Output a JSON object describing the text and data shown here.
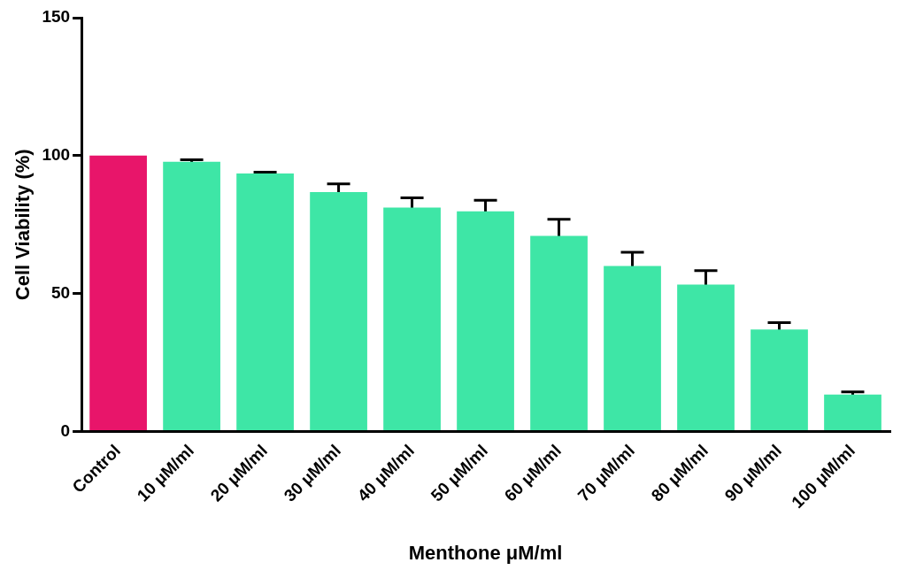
{
  "chart_data": {
    "type": "bar",
    "xlabel": "Menthone μM/ml",
    "ylabel": "Cell Viability (%)",
    "categories": [
      "Control",
      "10 μM/ml",
      "20 μM/ml",
      "30 μM/ml",
      "40 μM/ml",
      "50 μM/ml",
      "60 μM/ml",
      "70 μM/ml",
      "80 μM/ml",
      "90 μM/ml",
      "100 μM/ml"
    ],
    "values": [
      100,
      97.8,
      93.5,
      86.8,
      81.2,
      79.8,
      70.9,
      60,
      53.3,
      37,
      13.4
    ],
    "errors": [
      null,
      0.7,
      0.5,
      3,
      3.5,
      4,
      6,
      5,
      5,
      2.5,
      1
    ],
    "colors": [
      "#e8156a",
      "#3ee6a6",
      "#3ee6a6",
      "#3ee6a6",
      "#3ee6a6",
      "#3ee6a6",
      "#3ee6a6",
      "#3ee6a6",
      "#3ee6a6",
      "#3ee6a6",
      "#3ee6a6"
    ],
    "ylim": [
      0,
      150
    ],
    "yticks": [
      0,
      50,
      100,
      150
    ],
    "grid": false,
    "legend": false
  }
}
